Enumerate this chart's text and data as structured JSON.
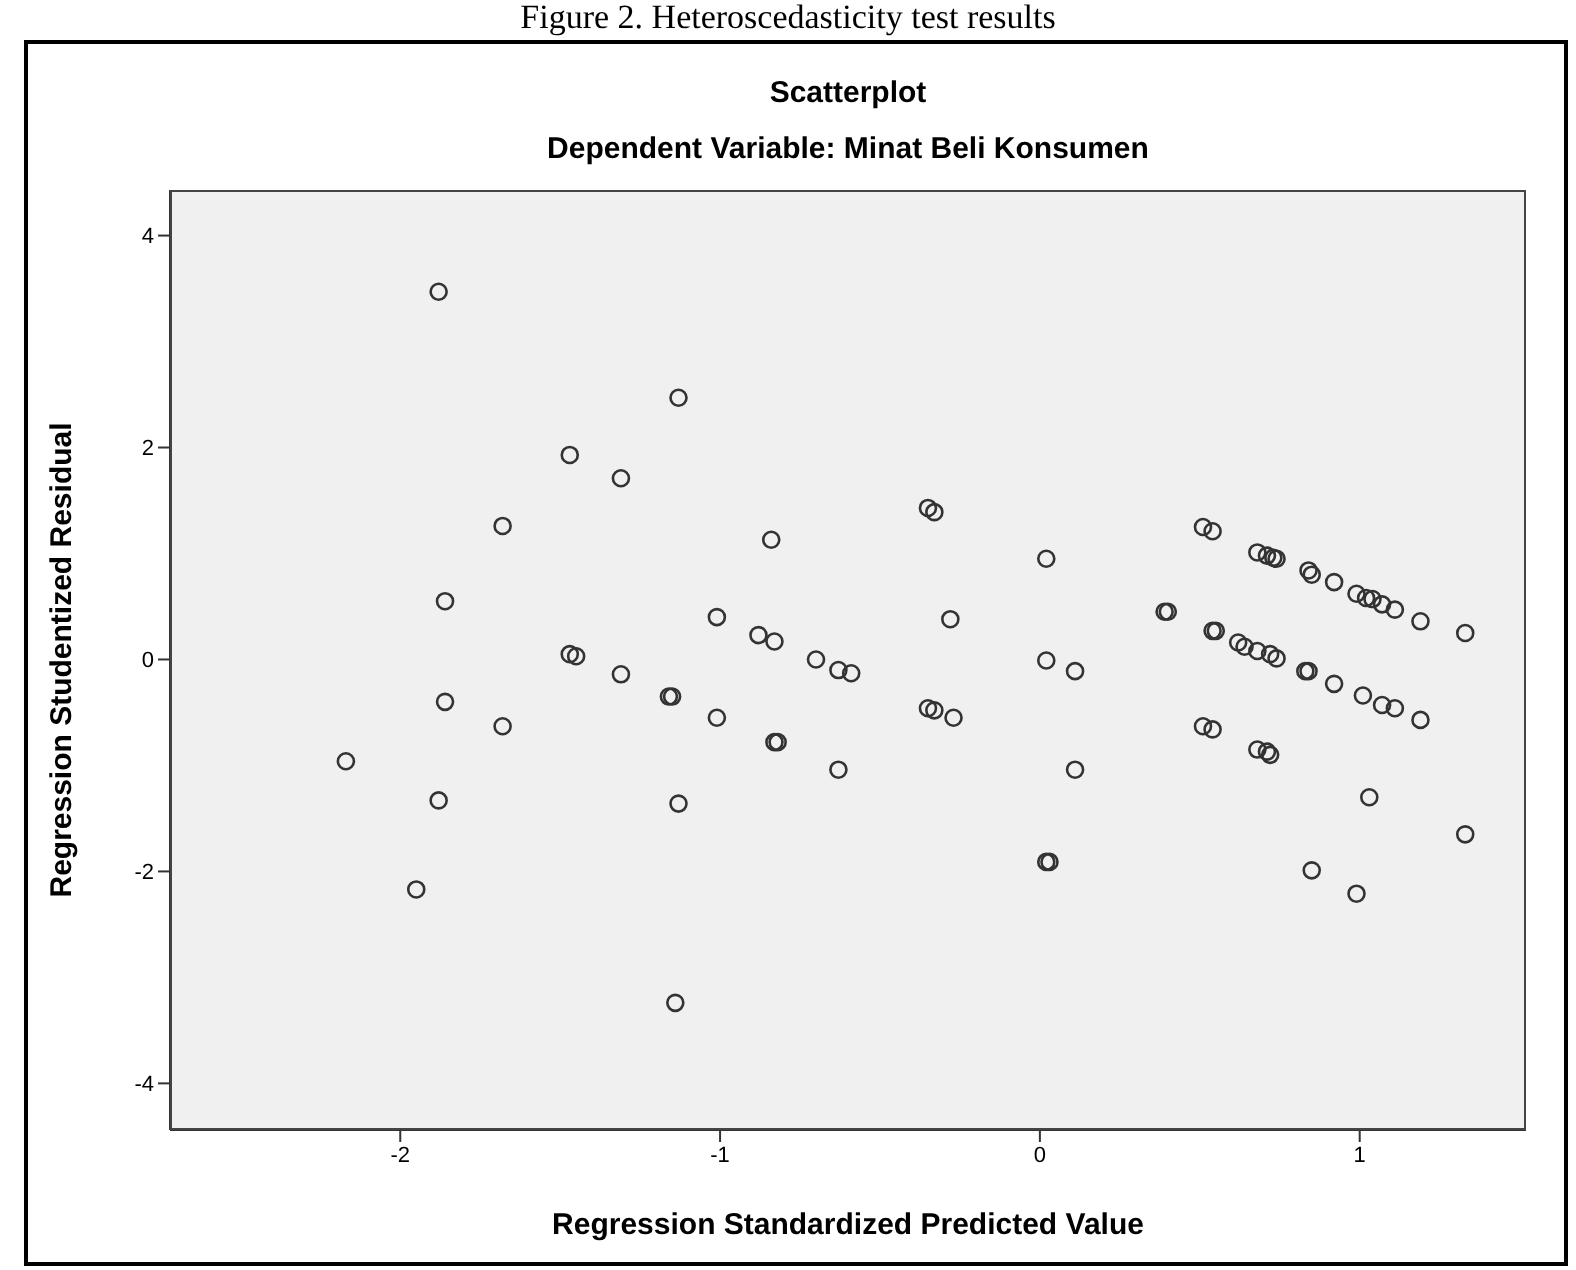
{
  "chart_data": {
    "type": "scatter",
    "title": "Scatterplot",
    "subtitle": "Dependent Variable: Minat Beli Konsumen",
    "xlabel": "Regression Standardized Predicted Value",
    "ylabel": "Regression Studentized Residual",
    "annotations": [
      "Figure 2. Heteroscedasticity test results"
    ],
    "x": [
      -1.88,
      -1.68,
      -1.86,
      -1.86,
      -1.68,
      -2.17,
      -1.88,
      -1.95,
      -1.13,
      -1.47,
      -1.31,
      -0.84,
      -1.01,
      -0.88,
      -0.83,
      -1.47,
      -1.45,
      -1.31,
      -0.7,
      -0.63,
      -0.59,
      -1.16,
      -1.15,
      -1.01,
      -0.83,
      -0.82,
      -0.63,
      -1.13,
      -1.14,
      -0.35,
      -0.33,
      -0.28,
      -0.35,
      -0.33,
      -0.27,
      0.02,
      0.02,
      0.11,
      0.11,
      0.02,
      0.03,
      0.39,
      0.4,
      0.51,
      0.54,
      0.54,
      0.55,
      0.51,
      0.54,
      0.68,
      0.71,
      0.73,
      0.74,
      0.84,
      0.85,
      0.92,
      0.99,
      1.02,
      1.04,
      1.07,
      1.11,
      1.19,
      0.62,
      0.64,
      0.68,
      0.72,
      0.74,
      0.83,
      0.84,
      0.92,
      1.01,
      1.07,
      1.11,
      1.19,
      0.68,
      0.71,
      0.72,
      1.03,
      0.85,
      0.99,
      1.33,
      1.33
    ],
    "values": [
      3.47,
      1.26,
      0.55,
      -0.4,
      -0.63,
      -0.96,
      -1.33,
      -2.17,
      2.47,
      1.93,
      1.71,
      1.13,
      0.4,
      0.23,
      0.17,
      0.05,
      0.03,
      -0.14,
      0.0,
      -0.1,
      -0.13,
      -0.35,
      -0.35,
      -0.55,
      -0.78,
      -0.78,
      -1.04,
      -1.36,
      -3.24,
      1.43,
      1.39,
      0.38,
      -0.46,
      -0.48,
      -0.55,
      0.95,
      -0.01,
      -0.11,
      -1.04,
      -1.91,
      -1.91,
      0.45,
      0.45,
      1.25,
      1.21,
      0.27,
      0.27,
      -0.63,
      -0.66,
      1.01,
      0.98,
      0.96,
      0.95,
      0.84,
      0.8,
      0.73,
      0.62,
      0.58,
      0.57,
      0.52,
      0.47,
      0.36,
      0.16,
      0.12,
      0.08,
      0.05,
      0.01,
      -0.11,
      -0.11,
      -0.23,
      -0.34,
      -0.43,
      -0.46,
      -0.57,
      -0.85,
      -0.87,
      -0.9,
      -1.3,
      -1.99,
      -2.21,
      0.25,
      -1.65
    ],
    "color": "#333333",
    "marker": "circle",
    "grid": false,
    "xlim": [
      -2.72,
      1.52
    ],
    "xticks": [
      -2,
      -1,
      0,
      1
    ],
    "ylim": [
      -4.44,
      4.43
    ],
    "yticks": [
      -4,
      -2,
      0,
      2,
      4
    ]
  }
}
